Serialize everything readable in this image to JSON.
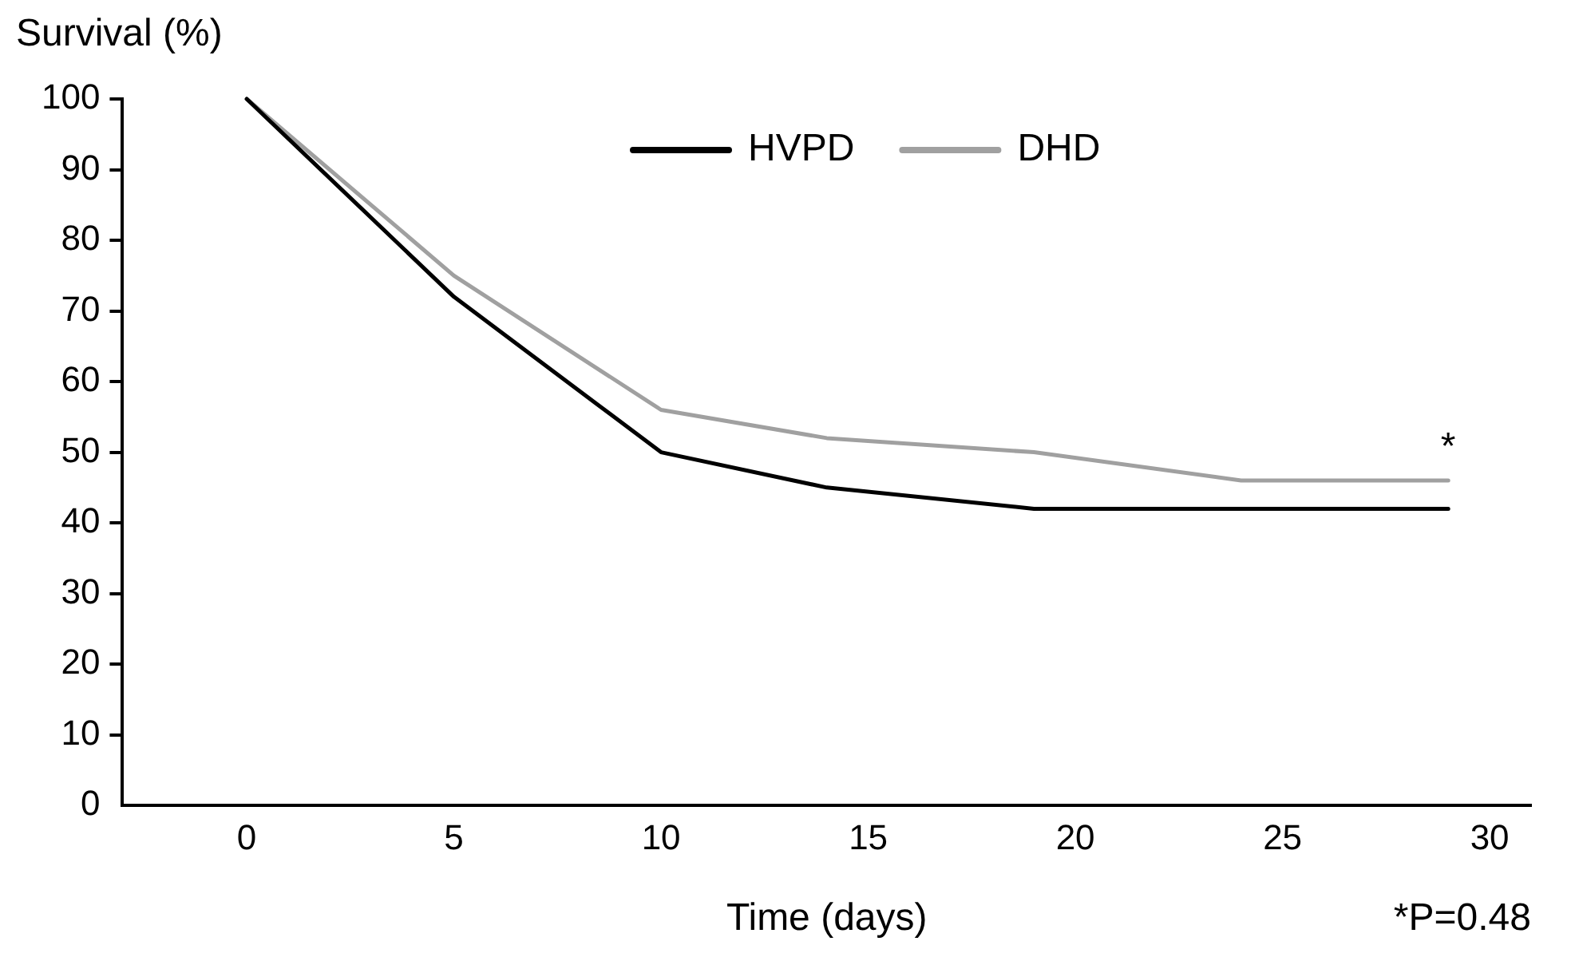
{
  "chart_data": {
    "type": "line",
    "xlabel": "Time (days)",
    "ylabel": "Survival (%)",
    "x": [
      0,
      5,
      10,
      14,
      19,
      24,
      29
    ],
    "series": [
      {
        "name": "HVPD",
        "color": "#000000",
        "values": [
          100,
          72,
          50,
          45,
          42,
          42,
          42
        ]
      },
      {
        "name": "DHD",
        "color": "#a0a0a0",
        "values": [
          100,
          75,
          56,
          52,
          50,
          46,
          46
        ]
      }
    ],
    "xlim": [
      -3,
      31
    ],
    "xticks": [
      0,
      5,
      10,
      15,
      20,
      25,
      30
    ],
    "ylim": [
      0,
      100
    ],
    "yticks": [
      0,
      10,
      20,
      30,
      40,
      50,
      60,
      70,
      80,
      90,
      100
    ],
    "grid": false,
    "legend": "top",
    "marker": "none",
    "line_style": "solid",
    "annotations": [
      {
        "text": "*",
        "x": 29,
        "y": 46
      },
      "*P=0.48"
    ]
  }
}
